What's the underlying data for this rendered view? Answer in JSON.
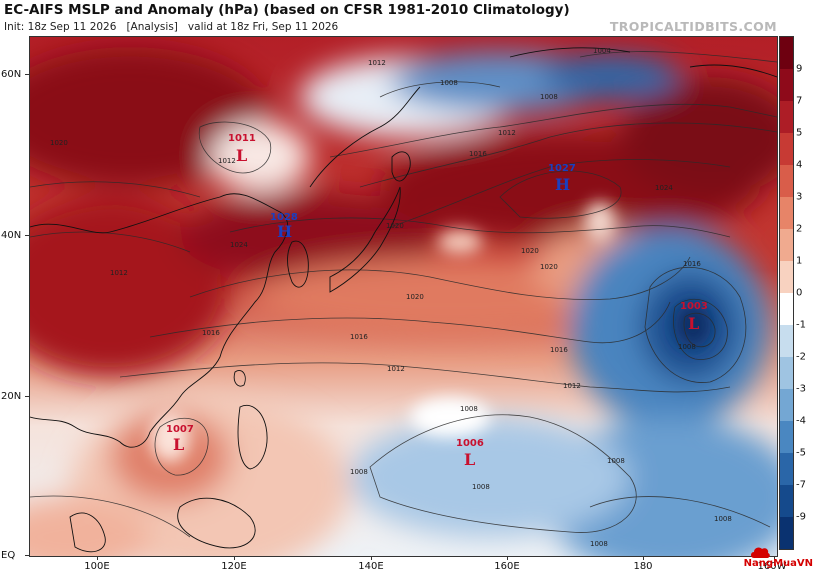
{
  "header": {
    "title": "EC-AIFS MSLP and Anomaly (hPa) (based on CFSR 1981-2010 Climatology)",
    "init": "Init: 18z Sep 11 2026",
    "analysis": "[Analysis]",
    "valid": "valid at 18z Fri, Sep 11 2026",
    "brand": "TROPICALTIDBITS.COM"
  },
  "axes": {
    "lat_labels": [
      "60N",
      "40N",
      "20N",
      "EQ"
    ],
    "lon_labels": [
      "100E",
      "120E",
      "140E",
      "160E",
      "180",
      "160W"
    ]
  },
  "colorbar": {
    "unit": "hPa",
    "labels": [
      "9",
      "7",
      "5",
      "4",
      "3",
      "2",
      "1",
      "0",
      "-1",
      "-2",
      "-3",
      "-4",
      "-5",
      "-7",
      "-9"
    ],
    "colors": [
      "#6e0010",
      "#8e0a1a",
      "#ad1d26",
      "#c73a34",
      "#d95d4a",
      "#e78468",
      "#f0aa8f",
      "#f8d2c0",
      "#ffffff",
      "#c7ddee",
      "#9fc4e2",
      "#74a7d3",
      "#4a87c1",
      "#2a66a8",
      "#154a8c",
      "#0a3270"
    ]
  },
  "systems": [
    {
      "type": "L",
      "pressure": "1011",
      "color": "#c8102e"
    },
    {
      "type": "H",
      "pressure": "1028",
      "color": "#1a3fc0"
    },
    {
      "type": "H",
      "pressure": "1027",
      "color": "#1a3fc0"
    },
    {
      "type": "L",
      "pressure": "1003",
      "color": "#c8102e"
    },
    {
      "type": "L",
      "pressure": "1007",
      "color": "#c8102e"
    },
    {
      "type": "L",
      "pressure": "1006",
      "color": "#c8102e"
    }
  ],
  "isobar_labels": [
    "1004",
    "1012",
    "1008",
    "1008",
    "1012",
    "1016",
    "1012",
    "1024",
    "1020",
    "1020",
    "1020",
    "1020",
    "1016",
    "1016",
    "1016",
    "1012",
    "1012",
    "1008",
    "1008",
    "1008",
    "1008",
    "1008",
    "1008",
    "1008",
    "1012",
    "1016",
    "1020",
    "1024"
  ],
  "watermark": "NangMuaVN"
}
